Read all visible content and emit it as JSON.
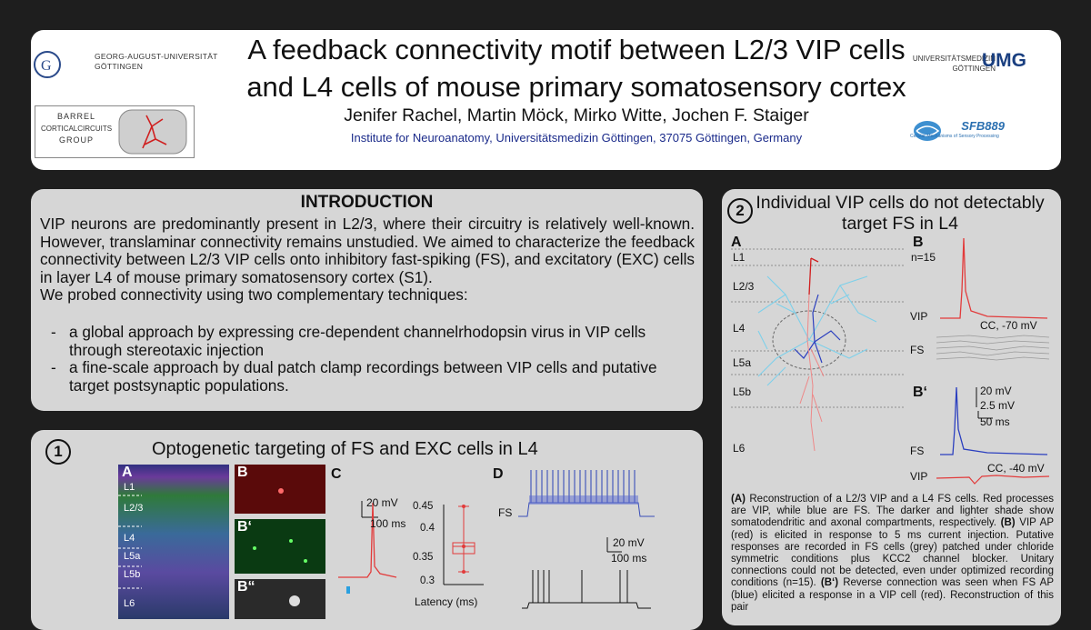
{
  "header": {
    "title_line1": "A feedback connectivity motif between L2/3 VIP cells",
    "title_line2": "and L4 cells of mouse primary somatosensory cortex",
    "authors": "Jenifer Rachel, Martin Möck, Mirko Witte, Jochen F. Staiger",
    "affiliation": "Institute for Neuroanatomy, Universitätsmedizin Göttingen, 37075 Göttingen, Germany",
    "uni_line1": "GEORG-AUGUST-UNIVERSITÄT",
    "uni_line2": "GÖTTINGEN",
    "barrel_line1": "BARREL",
    "barrel_line2": "CORTICALCIRCUITS",
    "barrel_line3": "GROUP",
    "umg_line1": "UNIVERSITÄTSMEDIZIN",
    "umg_line2": "GÖTTINGEN",
    "umg_logo": "UMG",
    "sfb_logo": "SFB889",
    "sfb_sub": "Cellular Mechanisms of Sensory Processing"
  },
  "intro": {
    "heading": "INTRODUCTION",
    "body": "VIP neurons are predominantly present in L2/3, where their circuitry is relatively well-known. However, translaminar connectivity remains unstudied. We aimed to characterize the feedback connectivity between L2/3 VIP cells onto inhibitory fast-spiking (FS), and excitatory (EXC) cells in layer L4 of mouse primary somatosensory cortex (S1).",
    "lead": "We probed connectivity using two complementary techniques:",
    "bullets": [
      "a global approach by expressing cre-dependent channelrhodopsin virus in VIP cells through stereotaxic injection",
      "a fine-scale approach by dual patch clamp recordings between VIP cells and putative target postsynaptic populations."
    ]
  },
  "section1": {
    "number": "1",
    "title": "Optogenetic targeting of FS and EXC cells in L4",
    "panel_labels": [
      "A",
      "B",
      "B‘",
      "B“",
      "C",
      "D"
    ],
    "layers": [
      "L1",
      "L2/3",
      "L4",
      "L5a",
      "L5b",
      "L6"
    ],
    "scale_c": [
      "20 mV",
      "100 ms"
    ],
    "latency_axis": [
      "0.45",
      "0.4",
      "0.35",
      "0.3"
    ],
    "latency_label": "Latency (ms)",
    "trace_fs": "FS",
    "scale_d": [
      "20 mV",
      "100 ms"
    ]
  },
  "section2": {
    "number": "2",
    "title": "Individual VIP cells do not detectably target FS in L4",
    "panel_a": "A",
    "panel_b": "B",
    "panel_bp": "B‘",
    "layers": [
      "L1",
      "L2/3",
      "L4",
      "L5a",
      "L5b",
      "L6"
    ],
    "n_label": "n=15",
    "vip": "VIP",
    "fs": "FS",
    "cc1": "CC, -70 mV",
    "cc2": "CC, -40 mV",
    "scale": [
      "20 mV",
      "2.5 mV",
      "50 ms"
    ],
    "caption_a_label": "(A)",
    "caption_a": " Reconstruction of a L2/3 VIP and a L4 FS cells. Red processes are VIP, while blue are FS. The darker and lighter shade show somatodendritic and axonal compartments, respectively. ",
    "caption_b_label": "(B)",
    "caption_b": " VIP AP (red) is elicited in response to 5 ms current injection. Putative responses are recorded in FS cells (grey) patched under chloride symmetric conditions plus KCC2 channel blocker. Unitary connections could not be detected, even under optimized recording conditions (n=15). ",
    "caption_bp_label": "(B‘)",
    "caption_bp": " Reverse connection was seen when FS AP (blue) elicited a response in a VIP cell (red). Reconstruction of this pair"
  },
  "colors": {
    "bg": "#1e1e1e",
    "panel": "#d6d6d6",
    "accent_red": "#e23b3b",
    "accent_blue": "#2b3fbf",
    "affil_blue": "#1a2a8a"
  }
}
